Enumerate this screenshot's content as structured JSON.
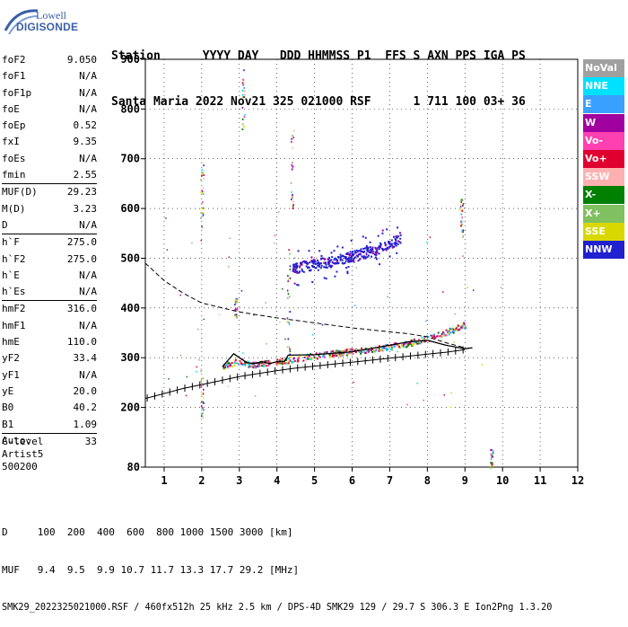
{
  "logo": {
    "line1": "Lowell",
    "line2": "DIGISONDE"
  },
  "header": {
    "labels": "Station      YYYY DAY   DDD HHMMSS P1  FFS S AXN PPS IGA PS",
    "values": "Santa Maria 2022 Nov21 325 021000 RSF      1 711 100 03+ 36"
  },
  "params": {
    "group1": [
      {
        "k": "foF2",
        "v": "9.050"
      },
      {
        "k": "foF1",
        "v": "N/A"
      },
      {
        "k": "foF1p",
        "v": "N/A"
      },
      {
        "k": "foE",
        "v": "N/A"
      },
      {
        "k": "foEp",
        "v": "0.52"
      },
      {
        "k": "fxI",
        "v": "9.35"
      },
      {
        "k": "foEs",
        "v": "N/A"
      },
      {
        "k": "fmin",
        "v": "2.55"
      }
    ],
    "group2": [
      {
        "k": "MUF(D)",
        "v": "29.23"
      },
      {
        "k": "M(D)",
        "v": "3.23"
      },
      {
        "k": "D",
        "v": "N/A"
      }
    ],
    "group3": [
      {
        "k": "h`F",
        "v": "275.0"
      },
      {
        "k": "h`F2",
        "v": "275.0"
      },
      {
        "k": "h`E",
        "v": "N/A"
      },
      {
        "k": "h`Es",
        "v": "N/A"
      }
    ],
    "group4": [
      {
        "k": "hmF2",
        "v": "316.0"
      },
      {
        "k": "hmF1",
        "v": "N/A"
      },
      {
        "k": "hmE",
        "v": "110.0"
      },
      {
        "k": "yF2",
        "v": "33.4"
      },
      {
        "k": "yF1",
        "v": "N/A"
      },
      {
        "k": "yE",
        "v": "20.0"
      },
      {
        "k": "B0",
        "v": "40.2"
      },
      {
        "k": "B1",
        "v": "1.09"
      }
    ],
    "group5": [
      {
        "k": "C-level",
        "v": "33"
      }
    ]
  },
  "auto": {
    "line1": "Auto:",
    "line2": "Artist5",
    "line3": "500200"
  },
  "legend": [
    {
      "label": "NoVal",
      "color": "#a0a0a0"
    },
    {
      "label": "NNE",
      "color": "#00e0ff"
    },
    {
      "label": "E",
      "color": "#3aa0ff"
    },
    {
      "label": "W",
      "color": "#a000a0"
    },
    {
      "label": "Vo-",
      "color": "#ff40b0"
    },
    {
      "label": "Vo+",
      "color": "#e00030"
    },
    {
      "label": "SSW",
      "color": "#ffb0b0"
    },
    {
      "label": "X-",
      "color": "#008000"
    },
    {
      "label": "X+",
      "color": "#80c060"
    },
    {
      "label": "SSE",
      "color": "#d8d800"
    },
    {
      "label": "NNW",
      "color": "#2020d0"
    }
  ],
  "footer": {
    "line1": "D     100  200  400  600  800 1000 1500 3000 [km]",
    "line2": "MUF   9.4  9.5  9.9 10.7 11.7 13.3 17.7 29.2 [MHz]",
    "line3": "SMK29_2022325021000.RSF / 460fx512h 25 kHz 2.5 km / DPS-4D SMK29 129 / 29.7 S 306.3 E Ion2Png 1.3.20"
  },
  "chart_data": {
    "type": "scatter",
    "xlim": [
      0.5,
      12
    ],
    "ylim": [
      80,
      900
    ],
    "x_ticks": [
      1,
      2,
      3,
      4,
      5,
      6,
      7,
      8,
      9,
      10,
      11,
      12
    ],
    "y_ticks": [
      80,
      200,
      300,
      400,
      500,
      600,
      700,
      800,
      900
    ],
    "trace_o_lower": [
      [
        2.55,
        282
      ],
      [
        2.8,
        290
      ],
      [
        3.0,
        296
      ],
      [
        3.3,
        286
      ],
      [
        3.6,
        290
      ],
      [
        4.0,
        293
      ],
      [
        4.4,
        298
      ],
      [
        5.0,
        305
      ],
      [
        6.0,
        314
      ],
      [
        6.5,
        318
      ],
      [
        7.0,
        323
      ],
      [
        7.5,
        330
      ],
      [
        8.0,
        340
      ],
      [
        8.5,
        352
      ],
      [
        9.0,
        368
      ]
    ],
    "trace_upper": [
      [
        4.4,
        480
      ],
      [
        5.0,
        490
      ],
      [
        5.5,
        495
      ],
      [
        6.0,
        505
      ],
      [
        6.5,
        515
      ],
      [
        7.0,
        530
      ],
      [
        7.3,
        545
      ]
    ],
    "profile_solid": [
      [
        2.55,
        282
      ],
      [
        2.7,
        295
      ],
      [
        2.85,
        308
      ],
      [
        3.0,
        300
      ],
      [
        3.2,
        290
      ],
      [
        3.4,
        288
      ],
      [
        3.6,
        292
      ],
      [
        3.8,
        288
      ],
      [
        4.0,
        292
      ],
      [
        4.2,
        293
      ],
      [
        4.3,
        305
      ],
      [
        5.0,
        306
      ],
      [
        6.0,
        312
      ],
      [
        7.0,
        325
      ],
      [
        7.5,
        332
      ],
      [
        8.0,
        335
      ],
      [
        8.5,
        325
      ],
      [
        9.0,
        318
      ],
      [
        9.2,
        320
      ]
    ],
    "profile_dashed": [
      [
        0.5,
        490
      ],
      [
        1.0,
        455
      ],
      [
        1.5,
        430
      ],
      [
        2.0,
        410
      ],
      [
        3.0,
        392
      ],
      [
        4.0,
        380
      ],
      [
        5.0,
        370
      ],
      [
        6.0,
        360
      ],
      [
        7.0,
        352
      ],
      [
        7.5,
        348
      ],
      [
        8.0,
        342
      ],
      [
        8.5,
        330
      ],
      [
        9.0,
        320
      ]
    ],
    "model_line": [
      [
        0.5,
        218
      ],
      [
        1.0,
        228
      ],
      [
        1.5,
        238
      ],
      [
        2.0,
        246
      ],
      [
        2.5,
        254
      ],
      [
        3.0,
        262
      ],
      [
        3.5,
        268
      ],
      [
        4.0,
        274
      ],
      [
        4.5,
        279
      ],
      [
        5.0,
        283
      ],
      [
        5.5,
        287
      ],
      [
        6.0,
        291
      ],
      [
        6.5,
        295
      ],
      [
        7.0,
        299
      ],
      [
        7.5,
        303
      ],
      [
        8.0,
        307
      ],
      [
        8.5,
        311
      ],
      [
        9.0,
        316
      ]
    ]
  }
}
